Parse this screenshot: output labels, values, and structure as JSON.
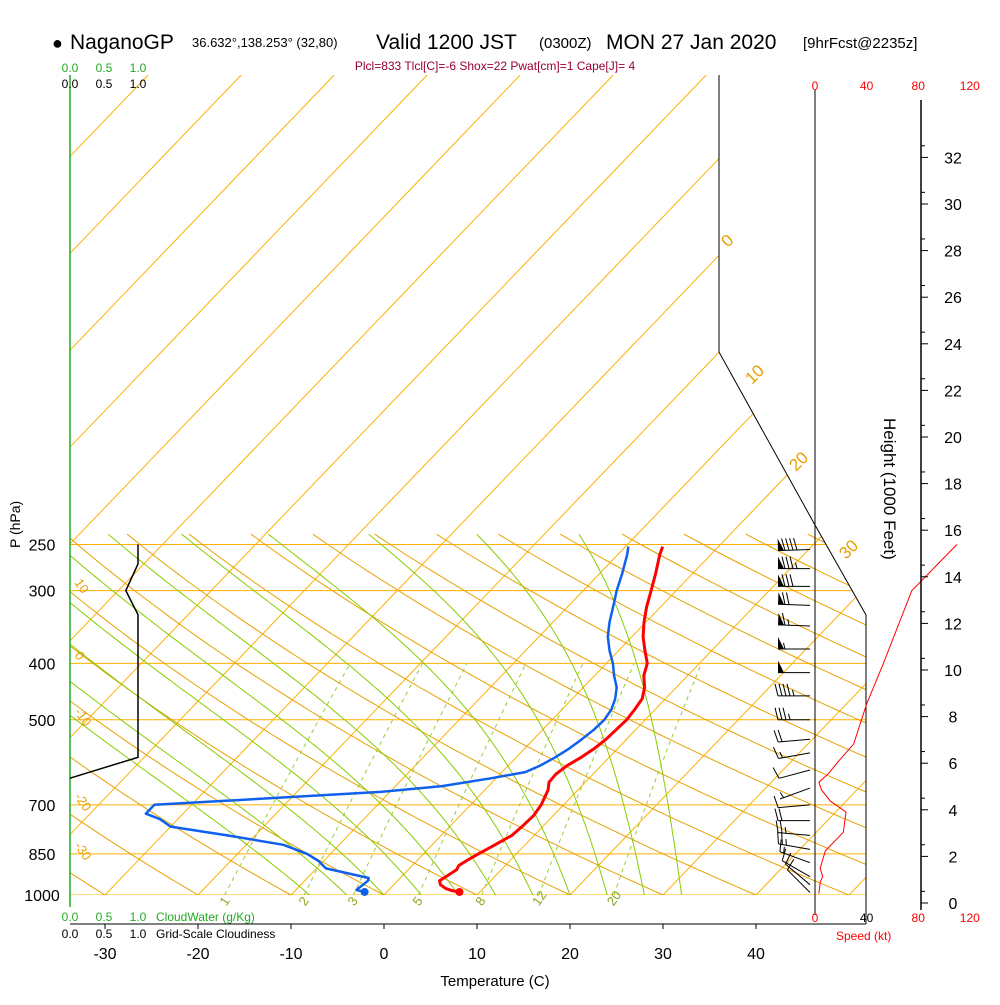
{
  "header": {
    "bullet": "●",
    "site": "NaganoGP",
    "coords": "36.632°,138.253° (32,80)",
    "valid": "Valid 1200 JST",
    "utc": "(0300Z)",
    "date": "MON 27 Jan 2020",
    "forecast": "[9hrFcst@2235z]"
  },
  "indices": "Plcl=833 Tlcl[C]=-6 Shox=22 Pwat[cm]=1 Cape[J]= 4",
  "colors": {
    "isobar": "#ffb000",
    "isotherm": "#ffb000",
    "dry_adiabat": "#e8a000",
    "moist_adiabat": "#88cc00",
    "mixing_ratio": "#99cc33",
    "temperature": "#ff0000",
    "dewpoint": "#1060ee",
    "cloudwater": "#22aa22",
    "cloudiness": "#000000",
    "text_accent": "#990033",
    "speed": "#ff0000"
  },
  "chart_data": {
    "type": "line",
    "title": "",
    "xlabel": "Temperature (C)",
    "ylabel": "P (hPa)",
    "right_label": "Height (1000 Feet)",
    "x_ticks": [
      "-30",
      "-20",
      "-10",
      "0",
      "10",
      "20",
      "30",
      "40"
    ],
    "p_ticks": [
      "250",
      "300",
      "400",
      "500",
      "700",
      "850",
      "1000"
    ],
    "height_ticks": [
      "0",
      "2",
      "4",
      "6",
      "8",
      "10",
      "12",
      "14",
      "16",
      "18",
      "20",
      "22",
      "24",
      "26",
      "28",
      "30",
      "32"
    ],
    "speed_ticks_top": [
      "0",
      "40",
      "80",
      "120"
    ],
    "speed_ticks_bottom": [
      "0",
      "40",
      "80",
      "120"
    ],
    "speed_label": "Speed (kt)",
    "cloudwater_ticks": [
      "0.0",
      "0.5",
      "1.0"
    ],
    "cloudwater_label": "CloudWater (g/Kg)",
    "cloudiness_ticks": [
      "0.0",
      "0.5",
      "1.0"
    ],
    "cloudiness_label": "Grid-Scale Cloudiness",
    "mixing_ratio_labels": [
      "1",
      "2",
      "3",
      "5",
      "8",
      "12",
      "20"
    ],
    "dry_adiabat_labels": [
      "10",
      "0",
      "-10",
      "-20",
      "-30"
    ],
    "moist_adiabat_labels": [
      "0",
      "10",
      "20",
      "30"
    ],
    "xlim": [
      -34,
      52
    ],
    "series": [
      {
        "name": "temperature",
        "points": [
          [
            7.8,
            988
          ],
          [
            7.0,
            984
          ],
          [
            6.0,
            975
          ],
          [
            5.0,
            960
          ],
          [
            4.5,
            945
          ],
          [
            4.8,
            928
          ],
          [
            5.2,
            905
          ],
          [
            5.0,
            890
          ],
          [
            5.4,
            870
          ],
          [
            5.9,
            850
          ],
          [
            6.6,
            825
          ],
          [
            7.6,
            790
          ],
          [
            7.8,
            760
          ],
          [
            7.9,
            730
          ],
          [
            7.6,
            700
          ],
          [
            7.2,
            680
          ],
          [
            6.8,
            660
          ],
          [
            6.1,
            640
          ],
          [
            6.0,
            620
          ],
          [
            6.3,
            600
          ],
          [
            7.0,
            580
          ],
          [
            7.5,
            560
          ],
          [
            7.8,
            540
          ],
          [
            7.9,
            520
          ],
          [
            8.0,
            500
          ],
          [
            7.8,
            480
          ],
          [
            7.5,
            460
          ],
          [
            6.6,
            440
          ],
          [
            5.3,
            420
          ],
          [
            4.4,
            400
          ],
          [
            2.8,
            380
          ],
          [
            1.2,
            360
          ],
          [
            -0.2,
            340
          ],
          [
            -1.5,
            320
          ],
          [
            -2.7,
            300
          ],
          [
            -4.0,
            280
          ],
          [
            -5.5,
            260
          ],
          [
            -6.0,
            252
          ]
        ]
      },
      {
        "name": "dewpoint",
        "points": [
          [
            -2.4,
            988
          ],
          [
            -3.0,
            984
          ],
          [
            -3.5,
            980
          ],
          [
            -3.4,
            970
          ],
          [
            -3.2,
            945
          ],
          [
            -3.4,
            935
          ],
          [
            -9.0,
            900
          ],
          [
            -10.5,
            875
          ],
          [
            -12.5,
            850
          ],
          [
            -16.0,
            820
          ],
          [
            -23.0,
            790
          ],
          [
            -30.0,
            763
          ],
          [
            -32.0,
            740
          ],
          [
            -34.0,
            725
          ],
          [
            -34.0,
            700
          ],
          [
            -11.0,
            665
          ],
          [
            -5.0,
            650
          ],
          [
            -0.5,
            630
          ],
          [
            2.5,
            615
          ],
          [
            3.4,
            600
          ],
          [
            4.2,
            580
          ],
          [
            4.8,
            560
          ],
          [
            5.2,
            540
          ],
          [
            5.5,
            520
          ],
          [
            5.6,
            500
          ],
          [
            5.3,
            480
          ],
          [
            4.6,
            460
          ],
          [
            3.6,
            440
          ],
          [
            2.1,
            420
          ],
          [
            0.7,
            400
          ],
          [
            -1.0,
            380
          ],
          [
            -2.6,
            360
          ],
          [
            -3.9,
            340
          ],
          [
            -5.1,
            320
          ],
          [
            -6.4,
            300
          ],
          [
            -7.6,
            280
          ],
          [
            -9.0,
            260
          ],
          [
            -9.7,
            252
          ]
        ]
      },
      {
        "name": "cloudiness",
        "points": [
          [
            1.0,
            250
          ],
          [
            1.0,
            270
          ],
          [
            0.82,
            300
          ],
          [
            1.0,
            330
          ],
          [
            1.0,
            580
          ],
          [
            0.0,
            630
          ]
        ]
      },
      {
        "name": "wind_speed",
        "points": [
          [
            3,
            995
          ],
          [
            4,
            950
          ],
          [
            6,
            930
          ],
          [
            4,
            900
          ],
          [
            8,
            840
          ],
          [
            22,
            780
          ],
          [
            24,
            720
          ],
          [
            12,
            690
          ],
          [
            5,
            660
          ],
          [
            3,
            640
          ],
          [
            10,
            620
          ],
          [
            18,
            590
          ],
          [
            30,
            550
          ],
          [
            40,
            470
          ],
          [
            53,
            400
          ],
          [
            75,
            300
          ],
          [
            110,
            250
          ]
        ]
      }
    ],
    "wind_barbs": [
      {
        "p": 990,
        "dir": 315,
        "kt": 10
      },
      {
        "p": 960,
        "dir": 310,
        "kt": 10
      },
      {
        "p": 930,
        "dir": 300,
        "kt": 10
      },
      {
        "p": 880,
        "dir": 290,
        "kt": 15
      },
      {
        "p": 835,
        "dir": 280,
        "kt": 25
      },
      {
        "p": 790,
        "dir": 275,
        "kt": 25
      },
      {
        "p": 745,
        "dir": 270,
        "kt": 20
      },
      {
        "p": 700,
        "dir": 265,
        "kt": 10
      },
      {
        "p": 655,
        "dir": 250,
        "kt": 5
      },
      {
        "p": 610,
        "dir": 255,
        "kt": 10
      },
      {
        "p": 570,
        "dir": 260,
        "kt": 15
      },
      {
        "p": 540,
        "dir": 265,
        "kt": 20
      },
      {
        "p": 500,
        "dir": 270,
        "kt": 35
      },
      {
        "p": 455,
        "dir": 270,
        "kt": 45
      },
      {
        "p": 415,
        "dir": 270,
        "kt": 50
      },
      {
        "p": 378,
        "dir": 270,
        "kt": 55
      },
      {
        "p": 345,
        "dir": 272,
        "kt": 65
      },
      {
        "p": 318,
        "dir": 272,
        "kt": 70
      },
      {
        "p": 295,
        "dir": 270,
        "kt": 80
      },
      {
        "p": 275,
        "dir": 270,
        "kt": 85
      },
      {
        "p": 255,
        "dir": 268,
        "kt": 90
      }
    ]
  }
}
